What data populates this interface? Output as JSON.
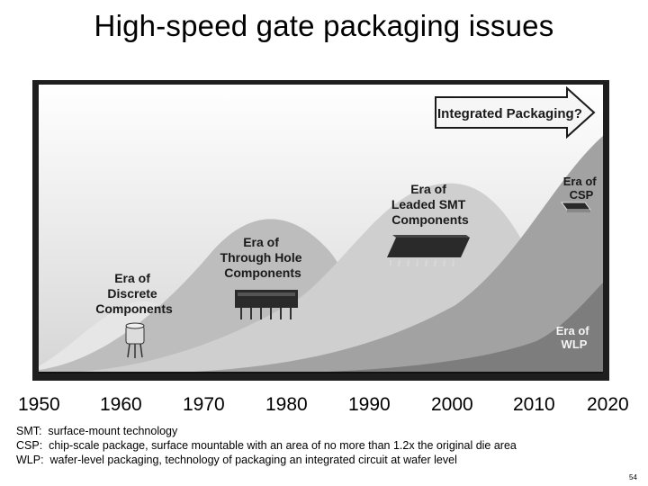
{
  "slide": {
    "title": "High-speed gate packaging issues",
    "page_number": "54"
  },
  "diagram": {
    "arrow_label": "Integrated Packaging?",
    "eras": [
      {
        "lines": [
          "Era of",
          "Discrete",
          "Components"
        ]
      },
      {
        "lines": [
          "Era of",
          "Through Hole",
          "Components"
        ]
      },
      {
        "lines": [
          "Era of",
          "Leaded SMT",
          "Components"
        ]
      },
      {
        "lines": [
          "Era of",
          "CSP"
        ]
      },
      {
        "lines": [
          "Era of",
          "WLP"
        ]
      }
    ],
    "years": [
      "1950",
      "1960",
      "1970",
      "1980",
      "1990",
      "2000",
      "2010",
      "2020"
    ]
  },
  "definitions": [
    {
      "text": "SMT:  surface-mount technology"
    },
    {
      "text": "CSP:  chip-scale package, surface mountable with an area of no more than 1.2x the original die area"
    },
    {
      "text": "WLP:  wafer-level packaging, technology of packaging an integrated circuit at wafer level"
    }
  ],
  "colors": {
    "frame": "#1e1e1e",
    "sky_top": "#ffffff",
    "sky_bottom": "#d6d6d6",
    "wave_1": "#e6e6e6",
    "wave_2": "#bdbdbd",
    "wave_3": "#cfcfcf",
    "wave_4": "#a2a2a2",
    "wave_5": "#7d7d7d",
    "label": "#1a1a1a",
    "label_on_dark": "#f4f4f4"
  }
}
